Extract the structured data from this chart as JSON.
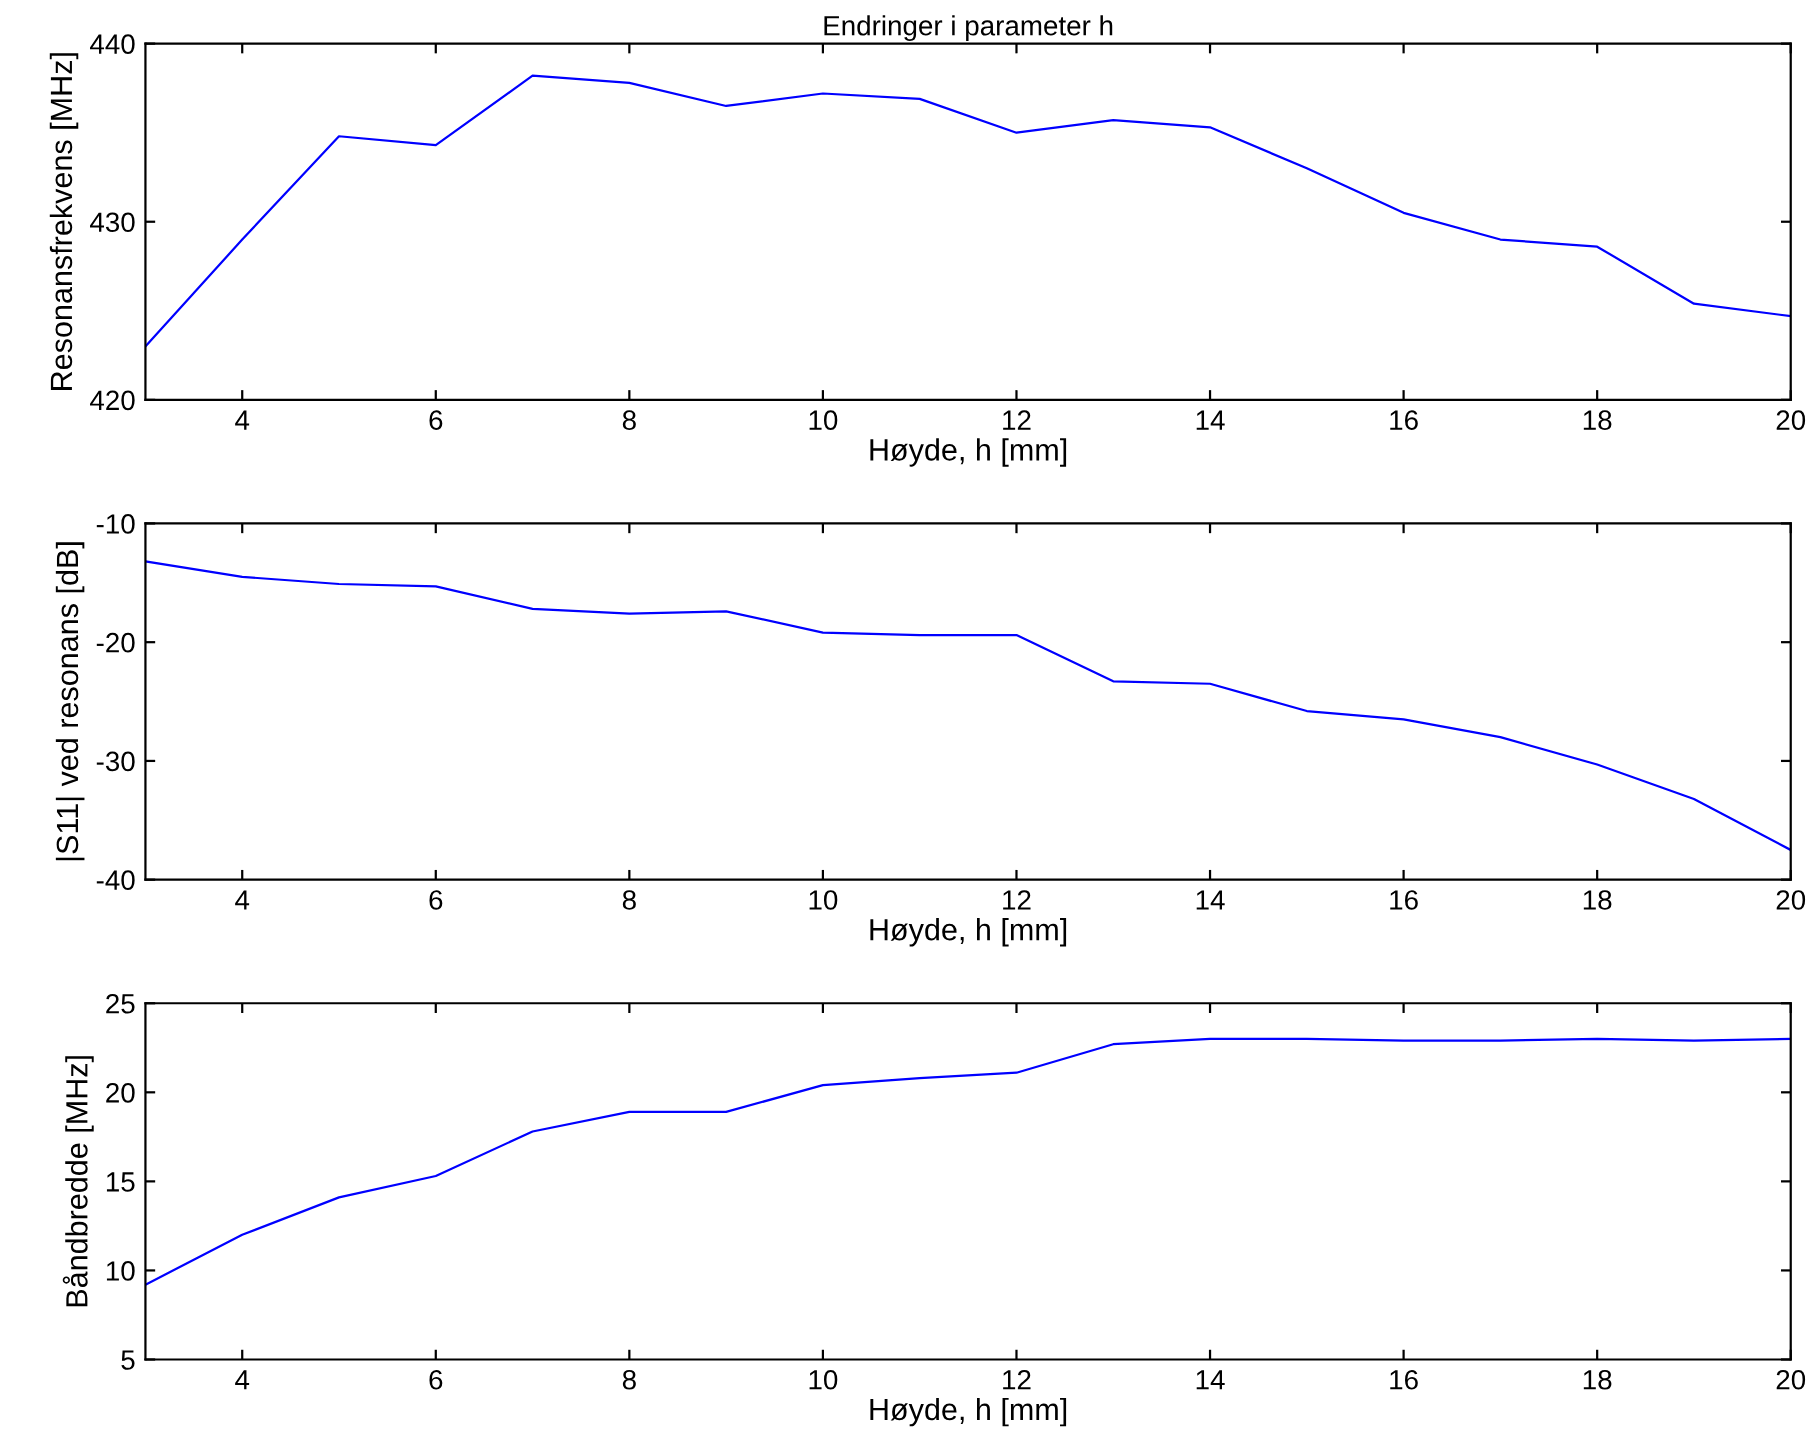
{
  "chart_data": [
    {
      "type": "line",
      "title": "Endringer i parameter h",
      "xlabel": "Høyde, h [mm]",
      "ylabel": "Resonansfrekvens [MHz]",
      "x": [
        3,
        4,
        5,
        6,
        7,
        8,
        9,
        10,
        11,
        12,
        13,
        14,
        15,
        16,
        17,
        18,
        19,
        20
      ],
      "series": [
        {
          "color": "#0000ff",
          "values": [
            423,
            429,
            434.8,
            434.3,
            438.2,
            437.8,
            436.5,
            437.2,
            436.9,
            435.0,
            435.7,
            435.3,
            433.0,
            430.5,
            429.0,
            428.6,
            425.4,
            424.7
          ]
        }
      ],
      "xlim": [
        3,
        20
      ],
      "xticks": [
        4,
        6,
        8,
        10,
        12,
        14,
        16,
        18,
        20
      ],
      "ylim": [
        420,
        440
      ],
      "yticks": [
        420,
        430,
        440
      ],
      "grid": false,
      "legend": false
    },
    {
      "type": "line",
      "xlabel": "Høyde, h [mm]",
      "ylabel": "|S11| ved resonans [dB]",
      "x": [
        3,
        4,
        5,
        6,
        7,
        8,
        9,
        10,
        11,
        12,
        13,
        14,
        15,
        16,
        17,
        18,
        19,
        20
      ],
      "series": [
        {
          "color": "#0000ff",
          "values": [
            -13.2,
            -14.5,
            -15.1,
            -15.3,
            -17.2,
            -17.6,
            -17.4,
            -19.2,
            -19.4,
            -19.4,
            -23.3,
            -23.5,
            -25.8,
            -26.5,
            -28.0,
            -30.3,
            -33.2,
            -37.5
          ]
        }
      ],
      "xlim": [
        3,
        20
      ],
      "xticks": [
        4,
        6,
        8,
        10,
        12,
        14,
        16,
        18,
        20
      ],
      "ylim": [
        -40,
        -10
      ],
      "yticks": [
        -40,
        -30,
        -20,
        -10
      ],
      "grid": false,
      "legend": false
    },
    {
      "type": "line",
      "xlabel": "Høyde, h [mm]",
      "ylabel": "Båndbredde [MHz]",
      "x": [
        3,
        4,
        5,
        6,
        7,
        8,
        9,
        10,
        11,
        12,
        13,
        14,
        15,
        16,
        17,
        18,
        19,
        20
      ],
      "series": [
        {
          "color": "#0000ff",
          "values": [
            9.2,
            12.0,
            14.1,
            15.3,
            17.8,
            18.9,
            18.9,
            20.4,
            20.8,
            21.1,
            22.7,
            23.0,
            23.0,
            22.9,
            22.9,
            23.0,
            22.9,
            23.0
          ]
        }
      ],
      "xlim": [
        3,
        20
      ],
      "xticks": [
        4,
        6,
        8,
        10,
        12,
        14,
        16,
        18,
        20
      ],
      "ylim": [
        5,
        25
      ],
      "yticks": [
        5,
        10,
        15,
        20,
        25
      ],
      "grid": false,
      "legend": false
    }
  ]
}
